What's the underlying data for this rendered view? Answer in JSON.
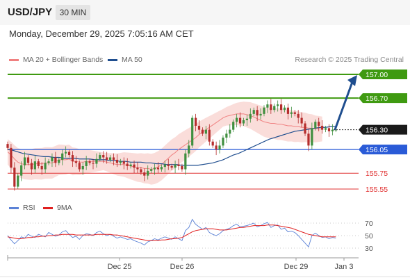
{
  "header": {
    "symbol": "USD/JPY",
    "timeframe": "30 MIN"
  },
  "timestamp": "Monday, December 29, 2025 7:05:16 AM CET",
  "legend": {
    "ma20": "MA 20 + Bollinger Bands",
    "ma50": "MA 50"
  },
  "copyright": "Research © 2025 Trading Central",
  "rsi_legend": {
    "rsi": "RSI",
    "ma9": "9MA"
  },
  "colors": {
    "ma20": "#f08080",
    "ma50": "#1f4e8f",
    "green": "#3f9a11",
    "blue": "#2a5bd7",
    "red": "#e03030",
    "band": "#f9d7d3",
    "up": "#3f8f3f",
    "down": "#b52c2c",
    "rsi": "#5b82d6",
    "ma9": "#e02020"
  },
  "chart_data": [
    {
      "type": "candlestick",
      "title": "USD/JPY 30 MIN",
      "x_ticks": [
        "Dec 25",
        "Dec 26",
        "Dec 29",
        "Jan 3"
      ],
      "ylim": [
        155.45,
        157.1
      ],
      "last_price": "156.30",
      "levels": [
        {
          "value": 157.0,
          "label": "157.00",
          "kind": "resistance"
        },
        {
          "value": 156.7,
          "label": "156.70",
          "kind": "resistance"
        },
        {
          "value": 156.05,
          "label": "156.05",
          "kind": "pivot"
        },
        {
          "value": 155.75,
          "label": "155.75",
          "kind": "support"
        },
        {
          "value": 155.55,
          "label": "155.55",
          "kind": "support"
        }
      ],
      "arrow": {
        "from": 156.3,
        "to": 157.0,
        "direction": "up"
      },
      "close_series": [
        156.07,
        155.82,
        155.58,
        155.72,
        155.85,
        155.95,
        155.88,
        155.8,
        155.9,
        155.84,
        155.8,
        155.88,
        155.9,
        155.95,
        155.88,
        155.92,
        156.0,
        156.02,
        155.98,
        155.9,
        155.88,
        155.8,
        155.84,
        155.9,
        155.88,
        155.87,
        155.93,
        155.98,
        155.95,
        155.92,
        155.95,
        155.92,
        155.88,
        155.9,
        155.87,
        155.84,
        155.86,
        155.82,
        155.8,
        155.76,
        155.72,
        155.78,
        155.8,
        155.82,
        155.8,
        155.83,
        155.86,
        155.84,
        155.82,
        155.86,
        155.84,
        155.8,
        156.0,
        156.1,
        156.45,
        156.35,
        156.3,
        156.25,
        156.3,
        156.15,
        156.1,
        156.05,
        156.1,
        156.2,
        156.25,
        156.3,
        156.4,
        156.45,
        156.38,
        156.42,
        156.44,
        156.5,
        156.55,
        156.48,
        156.5,
        156.58,
        156.62,
        156.55,
        156.6,
        156.62,
        156.55,
        156.58,
        156.5,
        156.52,
        156.5,
        156.45,
        156.38,
        156.25,
        156.1,
        156.32,
        156.4,
        156.35,
        156.3,
        156.32,
        156.28,
        156.3,
        156.3
      ],
      "ma20": [
        156.02,
        155.98,
        155.93,
        155.89,
        155.87,
        155.86,
        155.86,
        155.86,
        155.87,
        155.87,
        155.87,
        155.88,
        155.88,
        155.88,
        155.9,
        155.92,
        155.92,
        155.92,
        155.93,
        155.9,
        155.9,
        155.89,
        155.89,
        155.9,
        155.9,
        155.9,
        155.9,
        155.9,
        155.9,
        155.89,
        155.88,
        155.87,
        155.86,
        155.86,
        155.86,
        155.85,
        155.84,
        155.83,
        155.82,
        155.82,
        155.81,
        155.81,
        155.8,
        155.81,
        155.83,
        155.86,
        155.9,
        155.94,
        155.98,
        156.01,
        156.05,
        156.08,
        156.11,
        156.14,
        156.17,
        156.2,
        156.24,
        156.27,
        156.3,
        156.33,
        156.36,
        156.39,
        156.42,
        156.45,
        156.47,
        156.48,
        156.49,
        156.5,
        156.5,
        156.5,
        156.49,
        156.48,
        156.46,
        156.44,
        156.42,
        156.4,
        156.39,
        156.38,
        156.38,
        156.37,
        156.37,
        156.36,
        156.35,
        156.35,
        156.34,
        156.34,
        156.33,
        156.33,
        156.32,
        156.32,
        156.31,
        156.31,
        156.31
      ],
      "ma50": [
        156.05,
        156.04,
        156.02,
        156.0,
        155.99,
        155.98,
        155.97,
        155.96,
        155.96,
        155.95,
        155.95,
        155.94,
        155.94,
        155.94,
        155.93,
        155.93,
        155.93,
        155.92,
        155.92,
        155.92,
        155.91,
        155.91,
        155.9,
        155.9,
        155.89,
        155.89,
        155.89,
        155.88,
        155.88,
        155.87,
        155.87,
        155.86,
        155.86,
        155.86,
        155.85,
        155.85,
        155.85,
        155.85,
        155.86,
        155.87,
        155.88,
        155.9,
        155.92,
        155.95,
        155.98,
        156.0,
        156.03,
        156.06,
        156.09,
        156.12,
        156.15,
        156.18,
        156.2,
        156.22,
        156.24,
        156.26,
        156.28,
        156.29,
        156.3,
        156.31,
        156.32,
        156.33,
        156.33,
        156.34,
        156.34
      ],
      "ylabel": ""
    },
    {
      "type": "line",
      "title": "RSI",
      "y_ticks": [
        "70",
        "50",
        "30"
      ],
      "ylim": [
        20,
        80
      ],
      "series": [
        {
          "name": "RSI",
          "values": [
            50,
            43,
            37,
            42,
            48,
            46,
            52,
            49,
            47,
            52,
            50,
            48,
            55,
            52,
            49,
            51,
            56,
            58,
            52,
            47,
            49,
            44,
            50,
            53,
            52,
            50,
            55,
            57,
            53,
            50,
            52,
            49,
            46,
            48,
            46,
            44,
            45,
            42,
            40,
            38,
            35,
            40,
            42,
            45,
            43,
            46,
            48,
            46,
            44,
            48,
            45,
            42,
            58,
            63,
            76,
            68,
            64,
            60,
            63,
            55,
            52,
            50,
            53,
            58,
            60,
            62,
            66,
            68,
            64,
            65,
            66,
            68,
            70,
            64,
            66,
            69,
            71,
            63,
            66,
            67,
            60,
            62,
            56,
            57,
            55,
            50,
            44,
            38,
            32,
            50,
            54,
            50,
            47,
            48,
            45,
            47,
            46
          ]
        },
        {
          "name": "9MA",
          "values": [
            48,
            47,
            46,
            45,
            45,
            46,
            47,
            47,
            48,
            48,
            49,
            49,
            50,
            50,
            51,
            51,
            52,
            52,
            52,
            52,
            51,
            51,
            51,
            51,
            51,
            51,
            52,
            52,
            52,
            52,
            52,
            51,
            51,
            50,
            49,
            48,
            47,
            46,
            45,
            44,
            43,
            42,
            42,
            42,
            42,
            43,
            43,
            44,
            45,
            45,
            46,
            47,
            50,
            53,
            56,
            58,
            59,
            60,
            61,
            61,
            61,
            60,
            59,
            59,
            59,
            60,
            61,
            62,
            63,
            63,
            64,
            65,
            66,
            66,
            66,
            66,
            67,
            67,
            67,
            66,
            65,
            64,
            63,
            62,
            60,
            58,
            56,
            54,
            52,
            51,
            50,
            49,
            48,
            48,
            48,
            48,
            48
          ]
        }
      ]
    }
  ]
}
